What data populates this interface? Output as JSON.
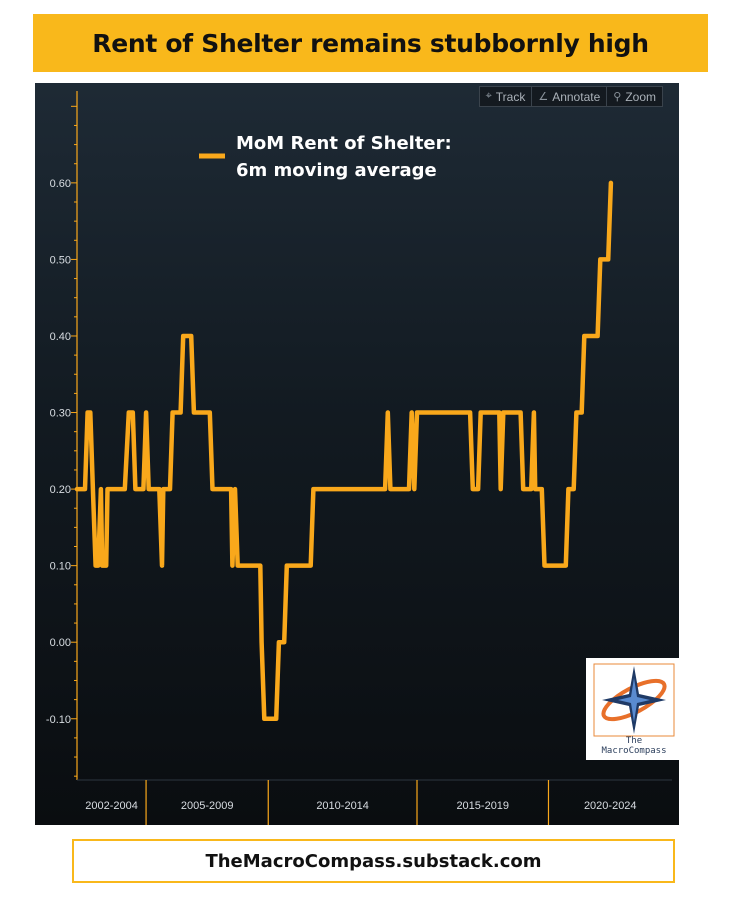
{
  "title": "Rent of Shelter remains stubbornly high",
  "footer": "TheMacroCompass.substack.com",
  "toolbar": [
    {
      "icon": "crosshair-icon",
      "glyph": "⌖",
      "label": "Track"
    },
    {
      "icon": "pencil-icon",
      "glyph": "∠",
      "label": "Annotate"
    },
    {
      "icon": "magnifier-icon",
      "glyph": "⚲",
      "label": "Zoom"
    }
  ],
  "logo": {
    "small": "The",
    "text": "MacroCompass"
  },
  "colors": {
    "line": "#f9a81b",
    "banner": "#f9b81b",
    "axis": "#f9a81b",
    "text": "#d8dde2"
  },
  "chart_data": {
    "type": "line",
    "legend": [
      "MoM Rent of Shelter:",
      "6m moving average"
    ],
    "legend_position": "top-left",
    "ylim": [
      -0.18,
      0.72
    ],
    "yticks": [
      -0.1,
      0.0,
      0.1,
      0.2,
      0.3,
      0.4,
      0.5,
      0.6
    ],
    "ytick_labels": [
      "-0.10",
      "0.00",
      "0.10",
      "0.20",
      "0.30",
      "0.40",
      "0.50",
      "0.60"
    ],
    "xlim": [
      2002.0,
      2024.4
    ],
    "x_groups": [
      {
        "label": "2002-2004",
        "start": 2002.0,
        "end": 2004.6
      },
      {
        "label": "2005-2009",
        "start": 2004.6,
        "end": 2009.2
      },
      {
        "label": "2010-2014",
        "start": 2009.2,
        "end": 2014.8
      },
      {
        "label": "2015-2019",
        "start": 2014.8,
        "end": 2019.75
      },
      {
        "label": "2020-2024",
        "start": 2019.75,
        "end": 2024.4
      }
    ],
    "series": [
      {
        "name": "MoM Rent of Shelter: 6m moving average",
        "points": [
          [
            2002.0,
            0.2
          ],
          [
            2002.3,
            0.2
          ],
          [
            2002.4,
            0.3
          ],
          [
            2002.5,
            0.3
          ],
          [
            2002.6,
            0.2
          ],
          [
            2002.7,
            0.1
          ],
          [
            2002.8,
            0.1
          ],
          [
            2002.9,
            0.2
          ],
          [
            2002.95,
            0.1
          ],
          [
            2003.1,
            0.1
          ],
          [
            2003.15,
            0.2
          ],
          [
            2003.8,
            0.2
          ],
          [
            2003.95,
            0.3
          ],
          [
            2004.1,
            0.3
          ],
          [
            2004.2,
            0.2
          ],
          [
            2004.5,
            0.2
          ],
          [
            2004.6,
            0.3
          ],
          [
            2004.7,
            0.2
          ],
          [
            2005.1,
            0.2
          ],
          [
            2005.2,
            0.1
          ],
          [
            2005.25,
            0.2
          ],
          [
            2005.5,
            0.2
          ],
          [
            2005.6,
            0.3
          ],
          [
            2005.9,
            0.3
          ],
          [
            2006.0,
            0.4
          ],
          [
            2006.3,
            0.4
          ],
          [
            2006.4,
            0.3
          ],
          [
            2007.0,
            0.3
          ],
          [
            2007.1,
            0.2
          ],
          [
            2007.8,
            0.2
          ],
          [
            2007.85,
            0.1
          ],
          [
            2007.95,
            0.2
          ],
          [
            2008.05,
            0.1
          ],
          [
            2008.1,
            0.1
          ],
          [
            2008.9,
            0.1
          ],
          [
            2008.95,
            0.0
          ],
          [
            2009.05,
            -0.1
          ],
          [
            2009.5,
            -0.1
          ],
          [
            2009.6,
            0.0
          ],
          [
            2009.8,
            0.0
          ],
          [
            2009.9,
            0.1
          ],
          [
            2010.8,
            0.1
          ],
          [
            2010.9,
            0.2
          ],
          [
            2013.6,
            0.2
          ],
          [
            2013.7,
            0.3
          ],
          [
            2013.8,
            0.2
          ],
          [
            2014.5,
            0.2
          ],
          [
            2014.6,
            0.3
          ],
          [
            2014.7,
            0.2
          ],
          [
            2014.8,
            0.3
          ],
          [
            2016.8,
            0.3
          ],
          [
            2016.9,
            0.2
          ],
          [
            2017.1,
            0.2
          ],
          [
            2017.2,
            0.3
          ],
          [
            2017.9,
            0.3
          ],
          [
            2017.95,
            0.2
          ],
          [
            2018.05,
            0.3
          ],
          [
            2018.7,
            0.3
          ],
          [
            2018.8,
            0.2
          ],
          [
            2019.1,
            0.2
          ],
          [
            2019.2,
            0.3
          ],
          [
            2019.25,
            0.2
          ],
          [
            2019.5,
            0.2
          ],
          [
            2019.6,
            0.1
          ],
          [
            2020.4,
            0.1
          ],
          [
            2020.5,
            0.2
          ],
          [
            2020.7,
            0.2
          ],
          [
            2020.8,
            0.3
          ],
          [
            2021.0,
            0.3
          ],
          [
            2021.1,
            0.4
          ],
          [
            2021.6,
            0.4
          ],
          [
            2021.7,
            0.5
          ],
          [
            2022.0,
            0.5
          ],
          [
            2022.1,
            0.6
          ]
        ]
      }
    ]
  }
}
